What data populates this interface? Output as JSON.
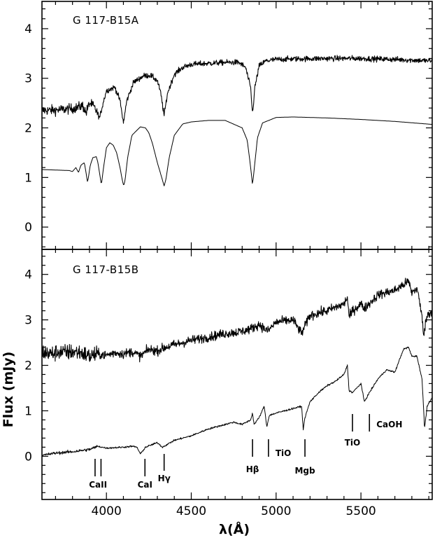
{
  "chart_data": {
    "xlabel": "λ(Å)",
    "ylabel": "Flux (mJy)",
    "xlim": [
      3620,
      5920
    ],
    "x_ticks": [
      4000,
      4500,
      5000,
      5500
    ],
    "panels": [
      {
        "type": "line",
        "title": "G 117-B15A",
        "ylim": [
          -0.45,
          4.55
        ],
        "y_ticks": [
          0,
          1,
          2,
          3,
          4
        ],
        "series": [
          {
            "role": "observed",
            "noise": 0.06,
            "x": [
              3620,
              3700,
              3780,
              3820,
              3860,
              3880,
              3900,
              3920,
              3940,
              3960,
              3980,
              4000,
              4050,
              4080,
              4100,
              4120,
              4160,
              4220,
              4260,
              4300,
              4320,
              4340,
              4360,
              4400,
              4450,
              4500,
              4600,
              4700,
              4780,
              4820,
              4850,
              4861,
              4875,
              4900,
              4940,
              5000,
              5100,
              5300,
              5500,
              5700,
              5920
            ],
            "y": [
              2.35,
              2.36,
              2.38,
              2.4,
              2.45,
              2.3,
              2.5,
              2.45,
              2.35,
              2.2,
              2.5,
              2.75,
              2.82,
              2.55,
              2.1,
              2.55,
              2.92,
              3.05,
              3.06,
              2.95,
              2.7,
              2.25,
              2.7,
              3.08,
              3.22,
              3.28,
              3.3,
              3.32,
              3.32,
              3.22,
              2.8,
              2.28,
              2.82,
              3.25,
              3.35,
              3.38,
              3.39,
              3.4,
              3.4,
              3.38,
              3.35
            ]
          },
          {
            "role": "model",
            "x": [
              3620,
              3700,
              3780,
              3800,
              3820,
              3835,
              3850,
              3870,
              3889,
              3905,
              3920,
              3940,
              3950,
              3970,
              3985,
              4000,
              4020,
              4040,
              4060,
              4080,
              4095,
              4102,
              4110,
              4125,
              4150,
              4200,
              4230,
              4250,
              4270,
              4300,
              4330,
              4340,
              4350,
              4370,
              4400,
              4450,
              4500,
              4600,
              4700,
              4800,
              4830,
              4850,
              4861,
              4872,
              4890,
              4920,
              5000,
              5100,
              5300,
              5500,
              5700,
              5920
            ],
            "y": [
              1.16,
              1.15,
              1.14,
              1.12,
              1.2,
              1.1,
              1.25,
              1.3,
              0.9,
              1.25,
              1.4,
              1.42,
              1.3,
              0.85,
              1.25,
              1.6,
              1.7,
              1.65,
              1.5,
              1.2,
              0.92,
              0.83,
              0.95,
              1.4,
              1.85,
              2.02,
              2.0,
              1.9,
              1.7,
              1.3,
              0.95,
              0.83,
              0.95,
              1.4,
              1.85,
              2.08,
              2.12,
              2.15,
              2.15,
              2.0,
              1.75,
              1.2,
              0.85,
              1.2,
              1.8,
              2.1,
              2.21,
              2.22,
              2.2,
              2.17,
              2.13,
              2.07
            ]
          }
        ]
      },
      {
        "type": "line",
        "title": "G 117-B15B",
        "ylim": [
          -0.95,
          4.55
        ],
        "y_ticks": [
          0,
          1,
          2,
          3,
          4
        ],
        "series": [
          {
            "role": "observed",
            "noise": 0.11,
            "x": [
              3620,
              3680,
              3720,
              3760,
              3800,
              3850,
              3900,
              3950,
              4000,
              4050,
              4100,
              4150,
              4200,
              4250,
              4300,
              4350,
              4400,
              4500,
              4600,
              4700,
              4750,
              4800,
              4850,
              4900,
              4950,
              5000,
              5100,
              5150,
              5200,
              5300,
              5400,
              5420,
              5430,
              5450,
              5500,
              5520,
              5600,
              5700,
              5760,
              5780,
              5800,
              5830,
              5855,
              5870,
              5890,
              5920
            ],
            "y": [
              2.3,
              2.25,
              2.3,
              2.28,
              2.3,
              2.28,
              2.2,
              2.25,
              2.22,
              2.28,
              2.25,
              2.3,
              2.2,
              2.35,
              2.32,
              2.4,
              2.45,
              2.55,
              2.62,
              2.7,
              2.72,
              2.75,
              2.8,
              2.9,
              2.75,
              2.95,
              3.0,
              2.7,
              3.1,
              3.2,
              3.35,
              3.5,
              3.05,
              3.2,
              3.35,
              3.25,
              3.55,
              3.65,
              3.8,
              3.85,
              3.6,
              3.7,
              3.2,
              2.7,
              3.1,
              3.2
            ]
          },
          {
            "role": "model",
            "noise": 0.02,
            "x": [
              3620,
              3700,
              3800,
              3900,
              3950,
              4000,
              4100,
              4150,
              4180,
              4200,
              4230,
              4300,
              4330,
              4400,
              4500,
              4600,
              4700,
              4750,
              4800,
              4850,
              4861,
              4870,
              4900,
              4930,
              4945,
              4960,
              5000,
              5050,
              5100,
              5150,
              5160,
              5170,
              5200,
              5250,
              5300,
              5350,
              5400,
              5420,
              5430,
              5450,
              5500,
              5520,
              5550,
              5600,
              5650,
              5700,
              5750,
              5780,
              5800,
              5830,
              5860,
              5875,
              5890,
              5920
            ],
            "y": [
              0.02,
              0.07,
              0.1,
              0.15,
              0.22,
              0.18,
              0.2,
              0.22,
              0.2,
              0.05,
              0.2,
              0.3,
              0.2,
              0.35,
              0.45,
              0.6,
              0.7,
              0.75,
              0.7,
              0.8,
              0.95,
              0.7,
              0.85,
              1.1,
              0.65,
              0.9,
              0.95,
              1.0,
              1.05,
              1.1,
              0.6,
              0.85,
              1.2,
              1.4,
              1.55,
              1.65,
              1.8,
              2.0,
              1.45,
              1.4,
              1.6,
              1.2,
              1.4,
              1.7,
              1.9,
              1.85,
              2.35,
              2.4,
              2.2,
              2.2,
              1.7,
              0.62,
              1.1,
              1.3
            ]
          }
        ],
        "annotations": [
          {
            "label": "CaII",
            "wavelengths": [
              3933,
              3968
            ]
          },
          {
            "label": "CaI",
            "wavelengths": [
              4227
            ]
          },
          {
            "label": "Hγ",
            "wavelengths": [
              4340
            ]
          },
          {
            "label": "Hβ",
            "wavelengths": [
              4861
            ]
          },
          {
            "label": "TiO",
            "wavelengths": [
              4955
            ]
          },
          {
            "label": "Mgb",
            "wavelengths": [
              5170
            ]
          },
          {
            "label": "TiO",
            "wavelengths": [
              5450
            ]
          },
          {
            "label": "CaOH",
            "wavelengths": [
              5550
            ]
          }
        ]
      }
    ]
  }
}
